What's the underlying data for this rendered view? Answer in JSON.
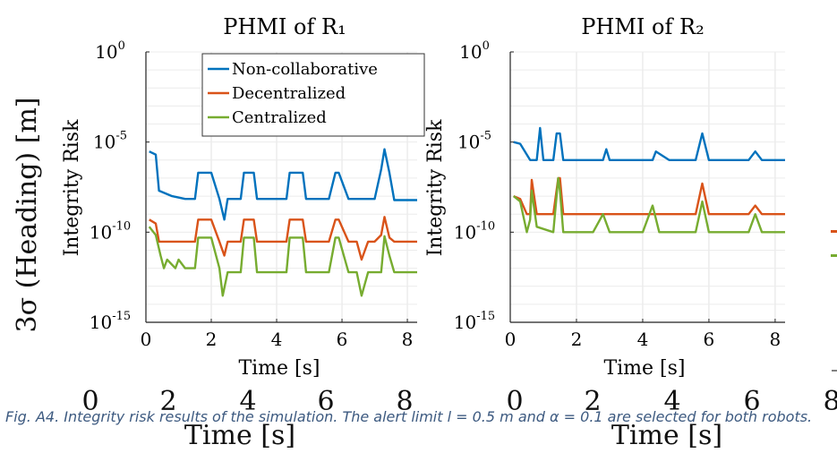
{
  "page": {
    "side_label": "3σ (Heading) [m]",
    "side_time_label": "Time [s]",
    "side_time_ticks": [
      "0",
      "2",
      "4",
      "6",
      "8"
    ],
    "caption": "Fig. A4.    Integrity risk results of the simulation. The alert limit l = 0.5 m and α = 0.1 are selected for both robots."
  },
  "colors": {
    "Non-collaborative": "#0072BD",
    "Decentralized": "#D95319",
    "Centralized": "#77AC30"
  },
  "chart_data": [
    {
      "type": "line",
      "title": "PHMI of R₁",
      "xlabel": "Time [s]",
      "ylabel": "Integrity Risk",
      "xlim": [
        0,
        8.3
      ],
      "xticks": [
        0,
        2,
        4,
        6,
        8
      ],
      "ylim_log10": [
        -15,
        0
      ],
      "yscale": "log",
      "yticks": [
        -15,
        -10,
        -5,
        0
      ],
      "grid": true,
      "legend": "top-right",
      "series": [
        {
          "name": "Non-collaborative",
          "x": [
            0.1,
            0.3,
            0.4,
            0.8,
            1.2,
            1.5,
            1.6,
            2.0,
            2.25,
            2.4,
            2.5,
            2.9,
            3.0,
            3.3,
            3.4,
            3.9,
            4.3,
            4.4,
            4.8,
            4.9,
            5.3,
            5.6,
            5.8,
            5.9,
            6.2,
            6.6,
            7.0,
            7.2,
            7.3,
            7.45,
            7.6,
            8.3
          ],
          "y": [
            3e-06,
            2e-06,
            2e-08,
            1e-08,
            7e-09,
            7e-09,
            2e-07,
            2e-07,
            7e-09,
            5e-10,
            7e-09,
            7e-09,
            2e-07,
            2e-07,
            7e-09,
            7e-09,
            7e-09,
            2e-07,
            2e-07,
            7e-09,
            7e-09,
            7e-09,
            2e-07,
            2e-07,
            7e-09,
            7e-09,
            7e-09,
            3e-07,
            4e-06,
            2e-07,
            6e-09,
            6e-09
          ]
        },
        {
          "name": "Decentralized",
          "x": [
            0.1,
            0.3,
            0.4,
            1.2,
            1.5,
            1.6,
            2.0,
            2.25,
            2.4,
            2.5,
            2.9,
            3.0,
            3.3,
            3.4,
            4.3,
            4.4,
            4.8,
            4.9,
            5.6,
            5.8,
            5.9,
            6.2,
            6.45,
            6.6,
            6.8,
            7.0,
            7.2,
            7.3,
            7.45,
            7.6,
            8.3
          ],
          "y": [
            5e-10,
            3e-10,
            3e-11,
            3e-11,
            3e-11,
            5e-10,
            5e-10,
            3e-11,
            5e-12,
            3e-11,
            3e-11,
            5e-10,
            5e-10,
            3e-11,
            3e-11,
            5e-10,
            5e-10,
            3e-11,
            3e-11,
            5e-10,
            5e-10,
            3e-11,
            3e-11,
            3e-12,
            3e-11,
            3e-11,
            7e-11,
            7e-10,
            5e-11,
            3e-11,
            3e-11
          ]
        },
        {
          "name": "Centralized",
          "x": [
            0.1,
            0.3,
            0.45,
            0.55,
            0.65,
            0.9,
            1.0,
            1.2,
            1.5,
            1.6,
            2.0,
            2.25,
            2.35,
            2.5,
            2.9,
            3.0,
            3.3,
            3.4,
            4.3,
            4.4,
            4.8,
            4.9,
            5.6,
            5.8,
            5.9,
            6.2,
            6.45,
            6.6,
            6.8,
            7.2,
            7.3,
            7.45,
            7.6,
            8.3
          ],
          "y": [
            2e-10,
            7e-11,
            5e-12,
            1e-12,
            3e-12,
            1e-12,
            3e-12,
            1e-12,
            1e-12,
            5e-11,
            5e-11,
            1e-12,
            3e-14,
            6e-13,
            6e-13,
            5e-11,
            5e-11,
            6e-13,
            6e-13,
            5e-11,
            5e-11,
            6e-13,
            6e-13,
            5e-11,
            5e-11,
            6e-13,
            6e-13,
            3e-14,
            6e-13,
            6e-13,
            6e-11,
            5e-12,
            6e-13,
            6e-13
          ]
        }
      ]
    },
    {
      "type": "line",
      "title": "PHMI of R₂",
      "xlabel": "Time [s]",
      "ylabel": "Integrity Risk",
      "xlim": [
        0,
        8.3
      ],
      "xticks": [
        0,
        2,
        4,
        6,
        8
      ],
      "ylim_log10": [
        -15,
        0
      ],
      "yscale": "log",
      "yticks": [
        -15,
        -10,
        -5,
        0
      ],
      "grid": true,
      "series": [
        {
          "name": "Non-collaborative",
          "x": [
            0.1,
            0.3,
            0.6,
            0.8,
            0.9,
            1.0,
            1.3,
            1.4,
            1.5,
            1.6,
            2.5,
            2.8,
            2.9,
            3.0,
            4.0,
            4.3,
            4.4,
            4.8,
            5.6,
            5.8,
            6.0,
            6.2,
            7.2,
            7.4,
            7.6,
            8.3
          ],
          "y": [
            1e-05,
            8e-06,
            1e-06,
            1e-06,
            6e-05,
            1e-06,
            1e-06,
            3e-05,
            3e-05,
            1e-06,
            1e-06,
            1e-06,
            4e-06,
            1e-06,
            1e-06,
            1e-06,
            3e-06,
            1e-06,
            1e-06,
            3e-05,
            1e-06,
            1e-06,
            1e-06,
            3e-06,
            1e-06,
            1e-06
          ]
        },
        {
          "name": "Decentralized",
          "x": [
            0.1,
            0.3,
            0.5,
            0.6,
            0.65,
            0.8,
            1.3,
            1.45,
            1.5,
            1.6,
            2.5,
            2.8,
            3.0,
            4.0,
            4.3,
            4.5,
            5.6,
            5.8,
            6.0,
            7.2,
            7.4,
            7.6,
            8.3
          ],
          "y": [
            1e-08,
            7e-09,
            1e-09,
            1e-09,
            8e-08,
            1e-09,
            1e-09,
            1e-07,
            1e-07,
            1e-09,
            1e-09,
            1e-09,
            1e-09,
            1e-09,
            1e-09,
            1e-09,
            1e-09,
            5e-08,
            1e-09,
            1e-09,
            3e-09,
            1e-09,
            1e-09
          ]
        },
        {
          "name": "Centralized",
          "x": [
            0.1,
            0.3,
            0.5,
            0.6,
            0.65,
            0.8,
            1.3,
            1.45,
            1.5,
            1.6,
            2.5,
            2.8,
            3.0,
            4.0,
            4.3,
            4.5,
            5.6,
            5.8,
            6.0,
            7.2,
            7.4,
            7.6,
            8.3
          ],
          "y": [
            1e-08,
            5e-09,
            1e-10,
            5e-10,
            2e-08,
            2e-10,
            1e-10,
            1e-07,
            2e-08,
            1e-10,
            1e-10,
            1e-09,
            1e-10,
            1e-10,
            3e-09,
            1e-10,
            1e-10,
            5e-09,
            1e-10,
            1e-10,
            1e-09,
            1e-10,
            1e-10
          ]
        }
      ]
    }
  ]
}
